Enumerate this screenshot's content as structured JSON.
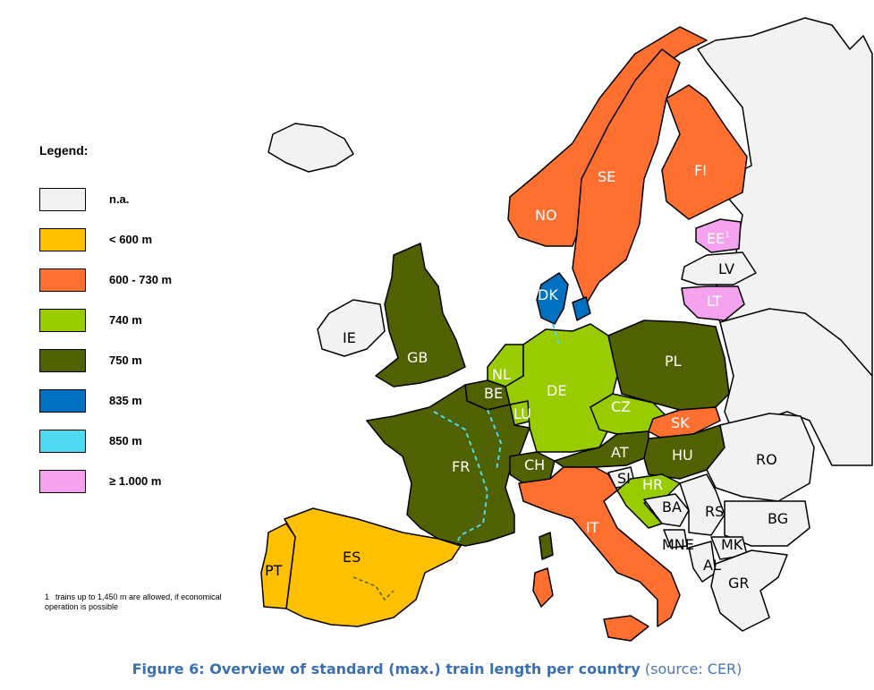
{
  "legend": {
    "title": "Legend:",
    "items": [
      {
        "label": "n.a.",
        "color": "#f2f2f2"
      },
      {
        "label": "< 600 m",
        "color": "#ffc000"
      },
      {
        "label": "600 - 730 m",
        "color": "#ff7030"
      },
      {
        "label": "740 m",
        "color": "#99cc00"
      },
      {
        "label": "750 m",
        "color": "#4f6100"
      },
      {
        "label": "835 m",
        "color": "#0070c0"
      },
      {
        "label": "850 m",
        "color": "#4fd9f0"
      },
      {
        "label": "≥ 1.000 m",
        "color": "#f5a3ef"
      }
    ]
  },
  "footnote": {
    "number": "1",
    "text": "trains up to 1,450 m are allowed,  if economical operation is possible"
  },
  "caption": {
    "bold": "Figure 6: Overview of standard (max.) train length per country",
    "source": " (source: CER)"
  },
  "countries": [
    {
      "code": "NO",
      "category": "600 - 730 m"
    },
    {
      "code": "SE",
      "category": "600 - 730 m"
    },
    {
      "code": "FI",
      "category": "600 - 730 m"
    },
    {
      "code": "EE",
      "category": "≥ 1.000 m",
      "sup": "1"
    },
    {
      "code": "LV",
      "category": "n.a."
    },
    {
      "code": "LT",
      "category": "≥ 1.000 m"
    },
    {
      "code": "DK",
      "category": "835 m"
    },
    {
      "code": "IE",
      "category": "n.a."
    },
    {
      "code": "GB",
      "category": "750 m"
    },
    {
      "code": "NL",
      "category": "740 m"
    },
    {
      "code": "BE",
      "category": "750 m"
    },
    {
      "code": "LU",
      "category": "740 m"
    },
    {
      "code": "DE",
      "category": "740 m"
    },
    {
      "code": "PL",
      "category": "750 m"
    },
    {
      "code": "CZ",
      "category": "740 m"
    },
    {
      "code": "SK",
      "category": "600 - 730 m"
    },
    {
      "code": "AT",
      "category": "750 m"
    },
    {
      "code": "HU",
      "category": "750 m"
    },
    {
      "code": "RO",
      "category": "n.a."
    },
    {
      "code": "FR",
      "category": "750 m"
    },
    {
      "code": "CH",
      "category": "750 m"
    },
    {
      "code": "SI",
      "category": "n.a."
    },
    {
      "code": "HR",
      "category": "740 m"
    },
    {
      "code": "BA",
      "category": "n.a."
    },
    {
      "code": "RS",
      "category": "n.a."
    },
    {
      "code": "BG",
      "category": "n.a."
    },
    {
      "code": "IT",
      "category": "600 - 730 m"
    },
    {
      "code": "MNE",
      "category": "n.a."
    },
    {
      "code": "MK",
      "category": "n.a."
    },
    {
      "code": "AL",
      "category": "n.a."
    },
    {
      "code": "GR",
      "category": "n.a."
    },
    {
      "code": "ES",
      "category": "< 600 m"
    },
    {
      "code": "PT",
      "category": "< 600 m"
    }
  ]
}
